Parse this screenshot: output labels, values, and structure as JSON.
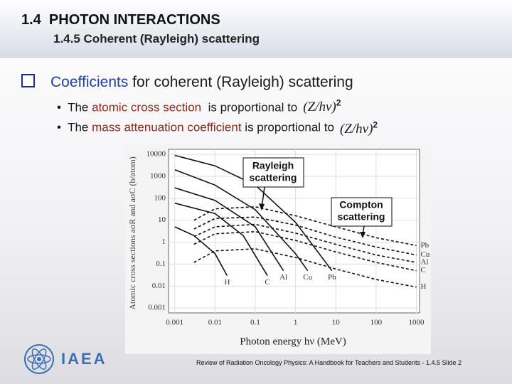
{
  "header": {
    "title": "1.4  PHOTON INTERACTIONS",
    "subtitle": "1.4.5 Coherent (Rayleigh) scattering"
  },
  "main_bullet": {
    "highlight": "Coefficients",
    "rest": " for coherent (Rayleigh) scattering"
  },
  "sub_bullets": [
    {
      "before": "The ",
      "highlight": "atomic cross section",
      "after": "  is proportional to",
      "formula": "(Z/hν)",
      "exponent": "2"
    },
    {
      "before": "The ",
      "highlight": "mass attenuation coefficient",
      "after": " is proportional to",
      "formula": "(Z/hν)",
      "exponent": "2"
    }
  ],
  "chart": {
    "type": "line",
    "xlabel": "Photon energy hν (MeV)",
    "ylabel": "Atomic cross sections aσR and aσC (b/atom)",
    "log_x": true,
    "log_y": true,
    "grid": true,
    "xlim": [
      0.0007,
      1200
    ],
    "ylim": [
      0.0006,
      17000
    ],
    "xticks": [
      0.001,
      0.01,
      0.1,
      1,
      10,
      100,
      1000
    ],
    "yticks": [
      10000,
      1000,
      100,
      10,
      1,
      0.1,
      0.01,
      0.001
    ],
    "annotations": [
      {
        "line1": "Rayleigh",
        "line2": "scattering"
      },
      {
        "line1": "Compton",
        "line2": "scattering"
      }
    ],
    "rayleigh": [
      {
        "name": "H",
        "x": [
          0.001,
          0.003,
          0.01,
          0.02
        ],
        "values": [
          5,
          2,
          0.3,
          0.03
        ]
      },
      {
        "name": "C",
        "x": [
          0.001,
          0.01,
          0.05,
          0.2
        ],
        "values": [
          60,
          20,
          2,
          0.03
        ]
      },
      {
        "name": "Al",
        "x": [
          0.001,
          0.01,
          0.1,
          0.5
        ],
        "values": [
          300,
          80,
          5,
          0.05
        ]
      },
      {
        "name": "Cu",
        "x": [
          0.001,
          0.01,
          0.1,
          1,
          2
        ],
        "values": [
          2000,
          400,
          30,
          0.3,
          0.05
        ]
      },
      {
        "name": "Pb",
        "x": [
          0.001,
          0.01,
          0.1,
          1,
          8
        ],
        "values": [
          9000,
          3000,
          400,
          8,
          0.05
        ]
      }
    ],
    "compton": [
      {
        "name": "Pb",
        "x": [
          0.003,
          0.01,
          0.1,
          1,
          10,
          100,
          1000
        ],
        "values": [
          10,
          33,
          41,
          16,
          5,
          1.6,
          0.7
        ]
      },
      {
        "name": "Cu",
        "x": [
          0.003,
          0.01,
          0.1,
          1,
          10,
          100,
          1000
        ],
        "values": [
          4,
          12,
          14,
          6,
          1.7,
          0.6,
          0.26
        ]
      },
      {
        "name": "Al",
        "x": [
          0.003,
          0.01,
          0.1,
          1,
          10,
          100,
          1000
        ],
        "values": [
          1.8,
          5,
          6.5,
          2.6,
          0.8,
          0.26,
          0.12
        ]
      },
      {
        "name": "C",
        "x": [
          0.003,
          0.01,
          0.1,
          1,
          10,
          100,
          1000
        ],
        "values": [
          0.8,
          2.4,
          3,
          1.2,
          0.36,
          0.12,
          0.05
        ]
      },
      {
        "name": "H",
        "x": [
          0.003,
          0.01,
          0.1,
          1,
          10,
          100,
          1000
        ],
        "values": [
          0.12,
          0.4,
          0.5,
          0.2,
          0.06,
          0.02,
          0.009
        ]
      }
    ]
  },
  "footer": {
    "logo_text": "IAEA",
    "text": "Review of Radiation Oncology Physics: A Handbook for Teachers and Students - 1.4.5 Slide 2"
  }
}
